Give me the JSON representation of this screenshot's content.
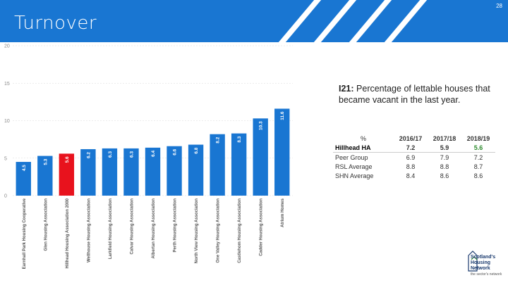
{
  "header": {
    "title": "Turnover",
    "page_number": "28"
  },
  "subtitle": {
    "code": "I21:",
    "text": "Percentage of lettable houses that became vacant in the last year."
  },
  "stats_table": {
    "corner": "%",
    "columns": [
      "2016/17",
      "2017/18",
      "2018/19"
    ],
    "rows": [
      {
        "label": "Hillhead HA",
        "values": [
          "7.2",
          "5.9",
          "5.6"
        ]
      },
      {
        "label": "Peer Group",
        "values": [
          "6.9",
          "7.9",
          "7.2"
        ]
      },
      {
        "label": "RSL Average",
        "values": [
          "8.8",
          "8.8",
          "8.7"
        ]
      },
      {
        "label": "SHN Average",
        "values": [
          "8.4",
          "8.6",
          "8.6"
        ]
      }
    ]
  },
  "logo": {
    "lines": [
      "Scotland's",
      "Housing",
      "Network"
    ],
    "tagline": "the sector's network"
  },
  "chart_data": {
    "type": "bar",
    "ylim": [
      0,
      20
    ],
    "yticks": [
      0,
      5,
      10,
      15,
      20
    ],
    "ytick_labels": [
      "0",
      "5",
      "10",
      "15",
      "20"
    ],
    "grid": true,
    "colors": {
      "default": "#1976d2",
      "highlight": "#e8121d"
    },
    "highlight_index": 2,
    "categories": [
      "Earnhall Park Housing Cooperative",
      "Glen Housing Association",
      "Hillhead Housing Association 2000",
      "Wellhouse Housing Association",
      "Larkfield Housing Association",
      "Calvar Housing Association",
      "Albertan Housing Association",
      "Perth Housing Association",
      "North View Housing Association",
      "One Valley Housing Association",
      "Castlehom Housing Association",
      "Cadder Housing Association",
      "Atrium Homes"
    ],
    "values": [
      4.5,
      5.3,
      5.6,
      6.2,
      6.3,
      6.3,
      6.4,
      6.6,
      6.8,
      8.2,
      8.3,
      10.3,
      11.6
    ],
    "labels": [
      "4.5",
      "5.3",
      "5.6",
      "6.2",
      "6.3",
      "6.3",
      "6.4",
      "6.6",
      "6.8",
      "8.2",
      "8.3",
      "10.3",
      "11.6"
    ]
  }
}
